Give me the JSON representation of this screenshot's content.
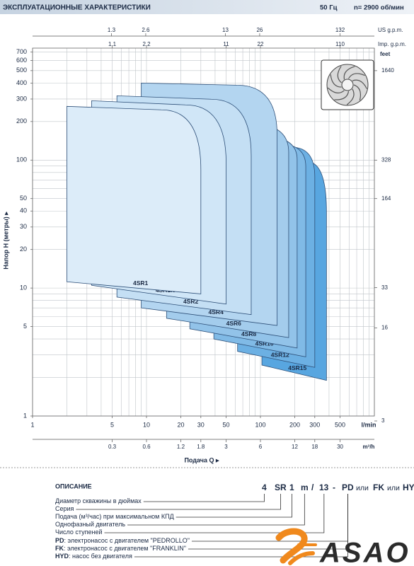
{
  "header": {
    "title": "ЭКСПЛУАТАЦИОННЫЕ ХАРАКТЕРИСТИКИ",
    "frequency": "50 Гц",
    "speed": "n= 2900 об/мин"
  },
  "chart_data": {
    "type": "region",
    "log_scale": true,
    "xlabel": "Подача Q ▸",
    "x_unit": "l/min",
    "ylabel": "Напор H (метры) ▸",
    "xlim": [
      1,
      1000
    ],
    "ylim": [
      1,
      750
    ],
    "xticks": [
      1,
      5,
      10,
      20,
      30,
      50,
      100,
      200,
      300,
      500
    ],
    "yticks": [
      1,
      5,
      10,
      20,
      30,
      40,
      50,
      100,
      200,
      300,
      400,
      500,
      600,
      700
    ],
    "xgrid": [
      1,
      2,
      3,
      4,
      5,
      6,
      7,
      8,
      9,
      10,
      20,
      30,
      40,
      50,
      60,
      70,
      80,
      90,
      100,
      200,
      300,
      400,
      500,
      600,
      700,
      800,
      900,
      1000
    ],
    "ygrid": [
      1,
      2,
      3,
      4,
      5,
      6,
      7,
      8,
      9,
      10,
      20,
      30,
      40,
      50,
      60,
      70,
      80,
      90,
      100,
      200,
      300,
      400,
      500,
      600,
      700
    ],
    "secondary_axes": [
      {
        "name": "US g.p.m.",
        "side": "top",
        "lim": [
          0.264,
          264
        ],
        "ticks": [
          1.3,
          2.6,
          13,
          26,
          132
        ]
      },
      {
        "name": "Imp. g.p.m.",
        "side": "top2",
        "lim": [
          0.22,
          220
        ],
        "ticks": [
          1.1,
          2.2,
          11,
          22,
          110
        ]
      },
      {
        "name": "m³/h",
        "side": "bottom",
        "lim": [
          0.06,
          60
        ],
        "ticks": [
          0.3,
          0.6,
          1.2,
          1.8,
          3,
          6,
          12,
          18,
          30
        ]
      },
      {
        "name": "feet",
        "side": "right",
        "lim": [
          3.28,
          2461
        ],
        "ticks": [
          3,
          16,
          33,
          164,
          328,
          1640
        ]
      }
    ],
    "series": [
      {
        "name": "4SR1",
        "color": "#dcecf9",
        "x": [
          2,
          2,
          13.5,
          30,
          30
        ],
        "values": [
          11.2,
          263,
          247,
          84,
          9.0
        ]
      },
      {
        "name": "4SR1.5",
        "color": "#d0e6f7",
        "x": [
          3.3,
          3.3,
          22,
          50,
          50
        ],
        "values": [
          10.5,
          291,
          270,
          95,
          7.5
        ]
      },
      {
        "name": "4SR2",
        "color": "#c4dff4",
        "x": [
          5.5,
          5.5,
          37,
          83,
          83
        ],
        "values": [
          8.5,
          318,
          299,
          108,
          6.2
        ]
      },
      {
        "name": "4SR4",
        "color": "#b3d5f0",
        "x": [
          9,
          9,
          62,
          140,
          140
        ],
        "values": [
          7.0,
          400,
          385,
          158,
          5.1
        ]
      },
      {
        "name": "4SR6",
        "color": "#a3ccec",
        "x": [
          15,
          15,
          84,
          177,
          177
        ],
        "values": [
          5.8,
          199,
          191,
          115,
          4.1
        ]
      },
      {
        "name": "4SR8",
        "color": "#92c3e9",
        "x": [
          24,
          24,
          109,
          210,
          210
        ],
        "values": [
          4.8,
          158,
          152,
          101,
          3.4
        ]
      },
      {
        "name": "4SR10",
        "color": "#80bae6",
        "x": [
          39,
          39,
          143,
          250,
          250
        ],
        "values": [
          4.0,
          139,
          134,
          89,
          2.9
        ]
      },
      {
        "name": "4SR12",
        "color": "#6cb0e3",
        "x": [
          63,
          63,
          188,
          300,
          300
        ],
        "values": [
          3.2,
          131,
          126,
          74,
          2.4
        ]
      },
      {
        "name": "4SR15",
        "color": "#58a6e0",
        "x": [
          103,
          103,
          257,
          380,
          380
        ],
        "values": [
          2.5,
          101,
          97,
          39,
          1.9
        ]
      }
    ]
  },
  "description": {
    "title": "ОПИСАНИЕ",
    "code": [
      "4",
      "SR",
      "1",
      "m",
      "/",
      "13",
      "-",
      "PD",
      "или",
      "FK",
      "или",
      "HYD"
    ],
    "items": [
      {
        "text": "Диаметр скважины в дюймах"
      },
      {
        "text": "Серия"
      },
      {
        "text": "Подача (м³/час) при максимальном КПД"
      },
      {
        "text": "Однофазный двигатель"
      },
      {
        "text": "Число ступеней"
      },
      {
        "key": "PD",
        "text": ": электронасос с двигателем \"PEDROLLO\""
      },
      {
        "key": "FK",
        "text": ": электронасос с двигателем \"FRANKLIN\""
      },
      {
        "key": "HYD",
        "text": ": насос без двигателя"
      }
    ]
  },
  "logo": "ASAO"
}
